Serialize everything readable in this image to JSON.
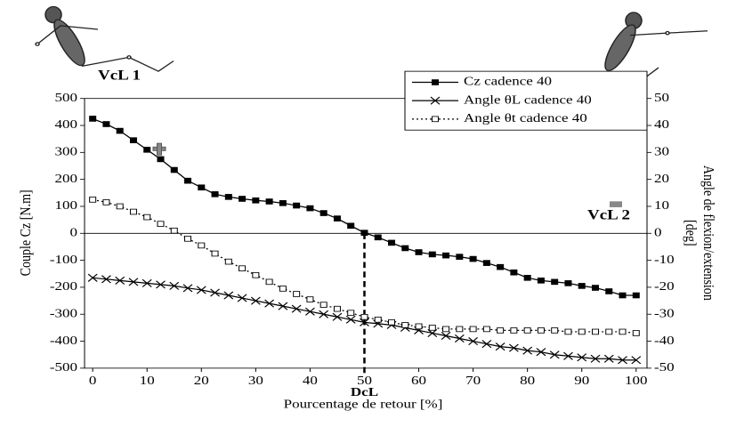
{
  "chart_data": {
    "type": "line",
    "x_label": "Pourcentage de retour [%]",
    "y_label": "Couple Cz [N.m]",
    "y2_label": [
      "Angle de flexion/extension",
      "[deg]"
    ],
    "annotations": [
      "VcL 1",
      "VcL 2"
    ],
    "vline": {
      "x": 50,
      "label": "DcL"
    },
    "x": [
      0,
      2.5,
      5,
      7.5,
      10,
      12.5,
      15,
      17.5,
      20,
      22.5,
      25,
      27.5,
      30,
      32.5,
      35,
      37.5,
      40,
      42.5,
      45,
      47.5,
      50,
      52.5,
      55,
      57.5,
      60,
      62.5,
      65,
      67.5,
      70,
      72.5,
      75,
      77.5,
      80,
      82.5,
      85,
      87.5,
      90,
      92.5,
      95,
      97.5,
      100
    ],
    "xlim": [
      -1.5,
      102
    ],
    "xticks": [
      0,
      10,
      20,
      30,
      40,
      50,
      60,
      70,
      80,
      90,
      100
    ],
    "ylim": [
      -500,
      500
    ],
    "yticks": [
      -500,
      -400,
      -300,
      -200,
      -100,
      0,
      100,
      200,
      300,
      400,
      500
    ],
    "y2lim": [
      -50,
      50
    ],
    "y2ticks": [
      -50,
      -40,
      -30,
      -20,
      -10,
      0,
      10,
      20,
      30,
      40,
      50
    ],
    "series": [
      {
        "name": "Cz cadence 40",
        "color": "#000000",
        "marker": "square",
        "dash": "solid",
        "values": [
          425,
          405,
          380,
          345,
          310,
          275,
          235,
          195,
          170,
          145,
          135,
          128,
          122,
          118,
          112,
          103,
          93,
          75,
          55,
          28,
          2,
          -15,
          -35,
          -55,
          -70,
          -78,
          -82,
          -87,
          -95,
          -110,
          -125,
          -145,
          -165,
          -175,
          -180,
          -185,
          -195,
          -202,
          -215,
          -230,
          -230
        ]
      },
      {
        "name": "Angle θL cadence 40",
        "color": "#000000",
        "marker": "cross",
        "dash": "solid",
        "axis": "y2",
        "values": [
          -16.5,
          -17,
          -17.5,
          -18,
          -18.5,
          -19,
          -19.5,
          -20.3,
          -21,
          -22,
          -23,
          -24,
          -25,
          -26,
          -27,
          -28,
          -29,
          -30,
          -31,
          -32,
          -33,
          -33.5,
          -34,
          -35,
          -36,
          -37,
          -38,
          -39,
          -40,
          -41,
          -42,
          -42.5,
          -43.5,
          -44,
          -45,
          -45.5,
          -46,
          -46.5,
          -46.5,
          -47,
          -47
        ]
      },
      {
        "name": "Angle θt cadence 40",
        "color": "#000000",
        "marker": "open-square",
        "dash": "dotted",
        "axis": "y2",
        "values": [
          12.5,
          11.5,
          10,
          8,
          6,
          3.5,
          1,
          -2,
          -4.5,
          -7.5,
          -10.5,
          -13,
          -15.5,
          -18,
          -20.5,
          -22.5,
          -24.5,
          -26.5,
          -28,
          -29.5,
          -31,
          -32,
          -33,
          -34,
          -34.5,
          -35,
          -35.5,
          -35.5,
          -35.5,
          -35.5,
          -36,
          -36,
          -36,
          -36,
          -36,
          -36.5,
          -36.5,
          -36.5,
          -36.5,
          -36.5,
          -37
        ]
      }
    ]
  }
}
